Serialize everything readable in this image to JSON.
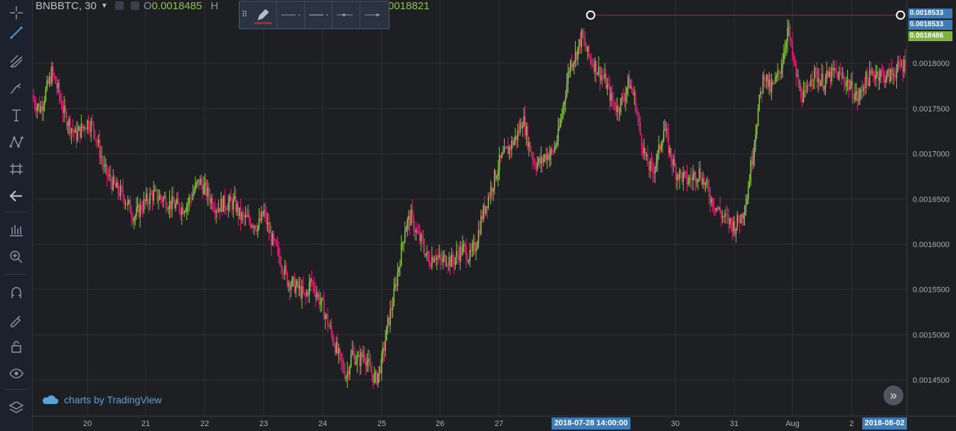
{
  "legend": {
    "symbol": "BNBBTC, 30",
    "open_label": "O",
    "open_value": "0.0018485",
    "high_label": "H",
    "close_value": "0018821"
  },
  "toolbar_tools": [
    "crosshair-icon",
    "trendline-icon",
    "pitchfork-icon",
    "brush-icon",
    "text-icon",
    "pattern-icon",
    "measure-icon",
    "back-arrow-icon",
    "chart-type-icon",
    "zoom-in-icon",
    "magnet-icon",
    "lock-draw-icon",
    "lock-icon",
    "eye-icon",
    "layers-icon"
  ],
  "float_toolbar": {
    "items": [
      "pencil-icon",
      "line-style-solid-icon",
      "line-width-icon",
      "line-end-icon",
      "line-arrow-icon"
    ]
  },
  "watermark": {
    "text": "charts by TradingView"
  },
  "scroll_button": {
    "glyph": "»"
  },
  "crosshair_labels": {
    "time_left": "2018-07-28 14:00:00",
    "time_right": "2018-08-02"
  },
  "price_tags": [
    {
      "label": "0.0018533",
      "bg": "#3e7cb8"
    },
    {
      "label": "0.0018533",
      "bg": "#3e7cb8"
    },
    {
      "label": "0.0018486",
      "bg": "#7cb342"
    }
  ],
  "colors": {
    "up": "#8bc34a",
    "down": "#e91e77",
    "grid": "#2f3136",
    "background": "#1e1f22",
    "axis_text": "#a8adb5",
    "hline": "#c0202a"
  },
  "chart_data": {
    "type": "line",
    "title": "",
    "series": [
      {
        "name": "BNBBTC",
        "points": [
          [
            "19.0",
            0.001765
          ],
          [
            "19.2",
            0.00175
          ],
          [
            "19.4",
            0.00179
          ],
          [
            "19.5",
            0.00177
          ],
          [
            "19.6",
            0.001745
          ],
          [
            "19.8",
            0.00172
          ],
          [
            "20.0",
            0.001735
          ],
          [
            "20.1",
            0.00173
          ],
          [
            "20.3",
            0.00168
          ],
          [
            "20.5",
            0.00166
          ],
          [
            "20.6",
            0.001655
          ],
          [
            "20.8",
            0.00163
          ],
          [
            "20.9",
            0.00164
          ],
          [
            "21.1",
            0.001655
          ],
          [
            "21.3",
            0.00165
          ],
          [
            "21.4",
            0.001645
          ],
          [
            "21.6",
            0.00164
          ],
          [
            "21.7",
            0.001645
          ],
          [
            "21.9",
            0.00167
          ],
          [
            "22.0",
            0.00166
          ],
          [
            "22.2",
            0.00164
          ],
          [
            "22.3",
            0.001645
          ],
          [
            "22.5",
            0.001645
          ],
          [
            "22.6",
            0.00163
          ],
          [
            "22.8",
            0.001625
          ],
          [
            "22.9",
            0.00162
          ],
          [
            "23.0",
            0.001635
          ],
          [
            "23.1",
            0.00161
          ],
          [
            "23.3",
            0.00158
          ],
          [
            "23.4",
            0.00156
          ],
          [
            "23.6",
            0.00155
          ],
          [
            "23.7",
            0.00154
          ],
          [
            "23.8",
            0.00156
          ],
          [
            "23.9",
            0.001545
          ],
          [
            "24.0",
            0.00153
          ],
          [
            "24.1",
            0.00151
          ],
          [
            "24.2",
            0.00149
          ],
          [
            "24.3",
            0.00147
          ],
          [
            "24.4",
            0.001455
          ],
          [
            "24.5",
            0.00148
          ],
          [
            "24.6",
            0.00147
          ],
          [
            "24.7",
            0.00148
          ],
          [
            "24.8",
            0.00146
          ],
          [
            "24.9",
            0.00145
          ],
          [
            "25.0",
            0.00147
          ],
          [
            "25.1",
            0.00151
          ],
          [
            "25.2",
            0.00154
          ],
          [
            "25.3",
            0.00158
          ],
          [
            "25.4",
            0.00162
          ],
          [
            "25.5",
            0.00163
          ],
          [
            "25.6",
            0.00161
          ],
          [
            "25.7",
            0.0016
          ],
          [
            "25.8",
            0.00158
          ],
          [
            "25.9",
            0.00159
          ],
          [
            "26.0",
            0.00158
          ],
          [
            "26.1",
            0.001585
          ],
          [
            "26.2",
            0.00158
          ],
          [
            "26.3",
            0.00159
          ],
          [
            "26.4",
            0.001595
          ],
          [
            "26.5",
            0.001585
          ],
          [
            "26.6",
            0.0016
          ],
          [
            "26.7",
            0.00163
          ],
          [
            "26.8",
            0.00165
          ],
          [
            "26.9",
            0.00167
          ],
          [
            "27.0",
            0.00169
          ],
          [
            "27.1",
            0.0017
          ],
          [
            "27.2",
            0.00171
          ],
          [
            "27.3",
            0.00172
          ],
          [
            "27.4",
            0.00174
          ],
          [
            "27.5",
            0.00171
          ],
          [
            "27.6",
            0.00169
          ],
          [
            "27.7",
            0.00169
          ],
          [
            "27.8",
            0.0017
          ],
          [
            "27.9",
            0.0017
          ],
          [
            "28.0",
            0.00172
          ],
          [
            "28.1",
            0.00176
          ],
          [
            "28.2",
            0.0018
          ],
          [
            "28.3",
            0.00181
          ],
          [
            "28.4",
            0.00183
          ],
          [
            "28.5",
            0.00181
          ],
          [
            "28.6",
            0.0018
          ],
          [
            "28.7",
            0.00179
          ],
          [
            "28.8",
            0.00178
          ],
          [
            "28.9",
            0.00176
          ],
          [
            "29.0",
            0.00175
          ],
          [
            "29.1",
            0.00176
          ],
          [
            "29.2",
            0.00178
          ],
          [
            "29.3",
            0.00176
          ],
          [
            "29.4",
            0.00172
          ],
          [
            "29.5",
            0.00169
          ],
          [
            "29.6",
            0.00168
          ],
          [
            "29.7",
            0.0017
          ],
          [
            "29.8",
            0.00173
          ],
          [
            "29.9",
            0.0017
          ],
          [
            "30.0",
            0.00168
          ],
          [
            "30.2",
            0.00167
          ],
          [
            "30.4",
            0.00168
          ],
          [
            "30.6",
            0.00165
          ],
          [
            "30.8",
            0.00163
          ],
          [
            "31.0",
            0.00162
          ],
          [
            "31.1",
            0.00163
          ],
          [
            "31.2",
            0.00165
          ],
          [
            "31.3",
            0.0017
          ],
          [
            "31.4",
            0.00175
          ],
          [
            "31.5",
            0.00179
          ],
          [
            "31.6",
            0.00177
          ],
          [
            "31.7",
            0.00178
          ],
          [
            "31.8",
            0.0018
          ],
          [
            "31.9",
            0.00184
          ],
          [
            "32.0",
            0.0018
          ],
          [
            "32.1",
            0.00177
          ],
          [
            "32.2",
            0.00176
          ],
          [
            "32.3",
            0.00179
          ],
          [
            "32.5",
            0.00178
          ],
          [
            "32.7",
            0.00179
          ],
          [
            "32.9",
            0.00178
          ],
          [
            "33.0",
            0.00177
          ],
          [
            "33.1",
            0.00176
          ],
          [
            "33.2",
            0.00178
          ],
          [
            "33.4",
            0.00179
          ],
          [
            "33.6",
            0.001785
          ],
          [
            "33.9",
            0.0018
          ]
        ]
      }
    ],
    "x_axis_ticks": [
      "20",
      "21",
      "22",
      "23",
      "24",
      "25",
      "26",
      "27",
      "30",
      "31",
      "Aug",
      "2"
    ],
    "y_axis_ticks": [
      "0.0018000",
      "0.0017500",
      "0.0017000",
      "0.0016500",
      "0.0016000",
      "0.0015500",
      "0.0015000",
      "0.0014500"
    ],
    "ylim": [
      0.00141,
      0.00187
    ],
    "grid": true,
    "horizontal_line": 0.0018533
  }
}
